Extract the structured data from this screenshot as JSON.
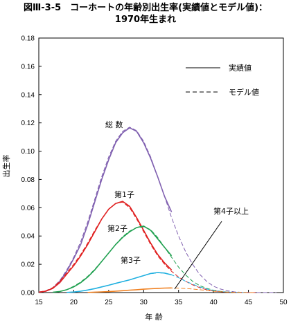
{
  "title_line1": "図Ⅲ-3-5　コーホートの年齢別出生率(実績値とモデル値)：",
  "title_line2": "1970年生まれ",
  "chart_data": {
    "type": "line",
    "title": "図Ⅲ-3-5　コーホートの年齢別出生率(実績値とモデル値)：1970年生まれ",
    "xlabel": "年 齢",
    "ylabel": "出生率",
    "xlim": [
      15,
      50
    ],
    "ylim": [
      0,
      0.18
    ],
    "xticks": [
      "15",
      "20",
      "25",
      "30",
      "35",
      "40",
      "45",
      "50"
    ],
    "yticks": [
      "0.00",
      "0.02",
      "0.04",
      "0.06",
      "0.08",
      "0.10",
      "0.12",
      "0.14",
      "0.16",
      "0.18"
    ],
    "legend": {
      "placement": "top-right",
      "entries": [
        "実績値",
        "モデル値"
      ]
    },
    "grid": false,
    "annotations": {
      "total": "総 数",
      "first": "第1子",
      "second": "第2子",
      "third": "第3子",
      "fourth": "第4子以上"
    },
    "series": [
      {
        "label": "総 数",
        "color": "#8060b0",
        "actual_x": [
          15,
          16,
          17,
          18,
          19,
          20,
          21,
          22,
          23,
          24,
          25,
          26,
          27,
          28,
          29,
          30,
          31,
          32,
          33,
          34
        ],
        "actual_y": [
          0.0003,
          0.001,
          0.003,
          0.008,
          0.015,
          0.024,
          0.034,
          0.048,
          0.064,
          0.08,
          0.094,
          0.106,
          0.113,
          0.1165,
          0.114,
          0.106,
          0.095,
          0.082,
          0.068,
          0.057
        ],
        "model_x": [
          15,
          16,
          17,
          18,
          19,
          20,
          21,
          22,
          23,
          24,
          25,
          26,
          27,
          28,
          29,
          30,
          31,
          32,
          33,
          34,
          35,
          36,
          37,
          38,
          39,
          40,
          41,
          42,
          43,
          44,
          45,
          46,
          47,
          48,
          49
        ],
        "model_y": [
          0.0003,
          0.0012,
          0.0035,
          0.0085,
          0.016,
          0.025,
          0.036,
          0.05,
          0.066,
          0.082,
          0.096,
          0.107,
          0.114,
          0.117,
          0.1145,
          0.107,
          0.096,
          0.082,
          0.068,
          0.053,
          0.04,
          0.029,
          0.02,
          0.013,
          0.008,
          0.0045,
          0.0025,
          0.0012,
          0.0005,
          0.0002,
          0.0001,
          0.0,
          0.0,
          0.0,
          0.0
        ]
      },
      {
        "label": "第1子",
        "color": "#e02020",
        "actual_x": [
          15,
          16,
          17,
          18,
          19,
          20,
          21,
          22,
          23,
          24,
          25,
          26,
          27,
          28,
          29,
          30,
          31,
          32,
          33,
          34
        ],
        "actual_y": [
          0.0003,
          0.001,
          0.003,
          0.007,
          0.013,
          0.019,
          0.026,
          0.034,
          0.043,
          0.052,
          0.059,
          0.063,
          0.0645,
          0.061,
          0.053,
          0.044,
          0.035,
          0.027,
          0.021,
          0.016
        ],
        "model_x": [
          15,
          16,
          17,
          18,
          19,
          20,
          21,
          22,
          23,
          24,
          25,
          26,
          27,
          28,
          29,
          30,
          31,
          32,
          33,
          34,
          35,
          36,
          37,
          38,
          39,
          40,
          41,
          42,
          43,
          44,
          45,
          46
        ],
        "model_y": [
          0.0003,
          0.0012,
          0.0035,
          0.008,
          0.014,
          0.02,
          0.027,
          0.035,
          0.044,
          0.052,
          0.059,
          0.063,
          0.064,
          0.06,
          0.052,
          0.043,
          0.034,
          0.026,
          0.02,
          0.015,
          0.011,
          0.008,
          0.0055,
          0.0035,
          0.002,
          0.0012,
          0.0006,
          0.0003,
          0.0001,
          0.0,
          0.0,
          0.0
        ]
      },
      {
        "label": "第2子",
        "color": "#20a050",
        "actual_x": [
          17,
          18,
          19,
          20,
          21,
          22,
          23,
          24,
          25,
          26,
          27,
          28,
          29,
          30,
          31,
          32,
          33,
          34
        ],
        "actual_y": [
          0.0002,
          0.0008,
          0.002,
          0.004,
          0.007,
          0.011,
          0.016,
          0.022,
          0.028,
          0.034,
          0.039,
          0.043,
          0.046,
          0.047,
          0.044,
          0.038,
          0.032,
          0.026
        ],
        "model_x": [
          17,
          18,
          19,
          20,
          21,
          22,
          23,
          24,
          25,
          26,
          27,
          28,
          29,
          30,
          31,
          32,
          33,
          34,
          35,
          36,
          37,
          38,
          39,
          40,
          41,
          42,
          43,
          44,
          45,
          46
        ],
        "model_y": [
          0.0002,
          0.0008,
          0.002,
          0.0045,
          0.0075,
          0.0115,
          0.0165,
          0.022,
          0.028,
          0.034,
          0.0395,
          0.0435,
          0.046,
          0.0465,
          0.0445,
          0.039,
          0.032,
          0.025,
          0.018,
          0.0125,
          0.008,
          0.005,
          0.003,
          0.0017,
          0.0009,
          0.0004,
          0.0002,
          0.0001,
          0.0,
          0.0
        ]
      },
      {
        "label": "第3子",
        "color": "#20b0e0",
        "actual_x": [
          19,
          20,
          21,
          22,
          23,
          24,
          25,
          26,
          27,
          28,
          29,
          30,
          31,
          32,
          33,
          34
        ],
        "actual_y": [
          0.0001,
          0.0004,
          0.001,
          0.0018,
          0.0028,
          0.004,
          0.0052,
          0.0065,
          0.0078,
          0.009,
          0.0105,
          0.012,
          0.0135,
          0.0142,
          0.0138,
          0.0125
        ],
        "model_x": [
          19,
          20,
          21,
          22,
          23,
          24,
          25,
          26,
          27,
          28,
          29,
          30,
          31,
          32,
          33,
          34,
          35,
          36,
          37,
          38,
          39,
          40,
          41,
          42,
          43,
          44,
          45
        ],
        "model_y": [
          0.0001,
          0.0004,
          0.001,
          0.0018,
          0.0028,
          0.004,
          0.0052,
          0.0065,
          0.0078,
          0.009,
          0.0105,
          0.012,
          0.0133,
          0.014,
          0.0137,
          0.0125,
          0.0105,
          0.008,
          0.006,
          0.004,
          0.0025,
          0.0015,
          0.0008,
          0.0004,
          0.0002,
          0.0001,
          0.0
        ]
      },
      {
        "label": "第4子以上",
        "color": "#f08020",
        "actual_x": [
          22,
          23,
          24,
          25,
          26,
          27,
          28,
          29,
          30,
          31,
          32,
          33,
          34
        ],
        "actual_y": [
          0.0001,
          0.0003,
          0.0005,
          0.0007,
          0.001,
          0.0013,
          0.0017,
          0.002,
          0.0024,
          0.0027,
          0.003,
          0.0032,
          0.0033
        ],
        "model_x": [
          22,
          23,
          24,
          25,
          26,
          27,
          28,
          29,
          30,
          31,
          32,
          33,
          34,
          35,
          36,
          37,
          38,
          39,
          40,
          41,
          42,
          43,
          44,
          45,
          46
        ],
        "model_y": [
          0.0001,
          0.0003,
          0.0005,
          0.0007,
          0.001,
          0.0013,
          0.0017,
          0.002,
          0.0024,
          0.0027,
          0.003,
          0.0032,
          0.0033,
          0.0032,
          0.0029,
          0.0025,
          0.002,
          0.0015,
          0.001,
          0.0006,
          0.0003,
          0.0002,
          0.0001,
          0.0,
          0.0
        ]
      }
    ]
  }
}
